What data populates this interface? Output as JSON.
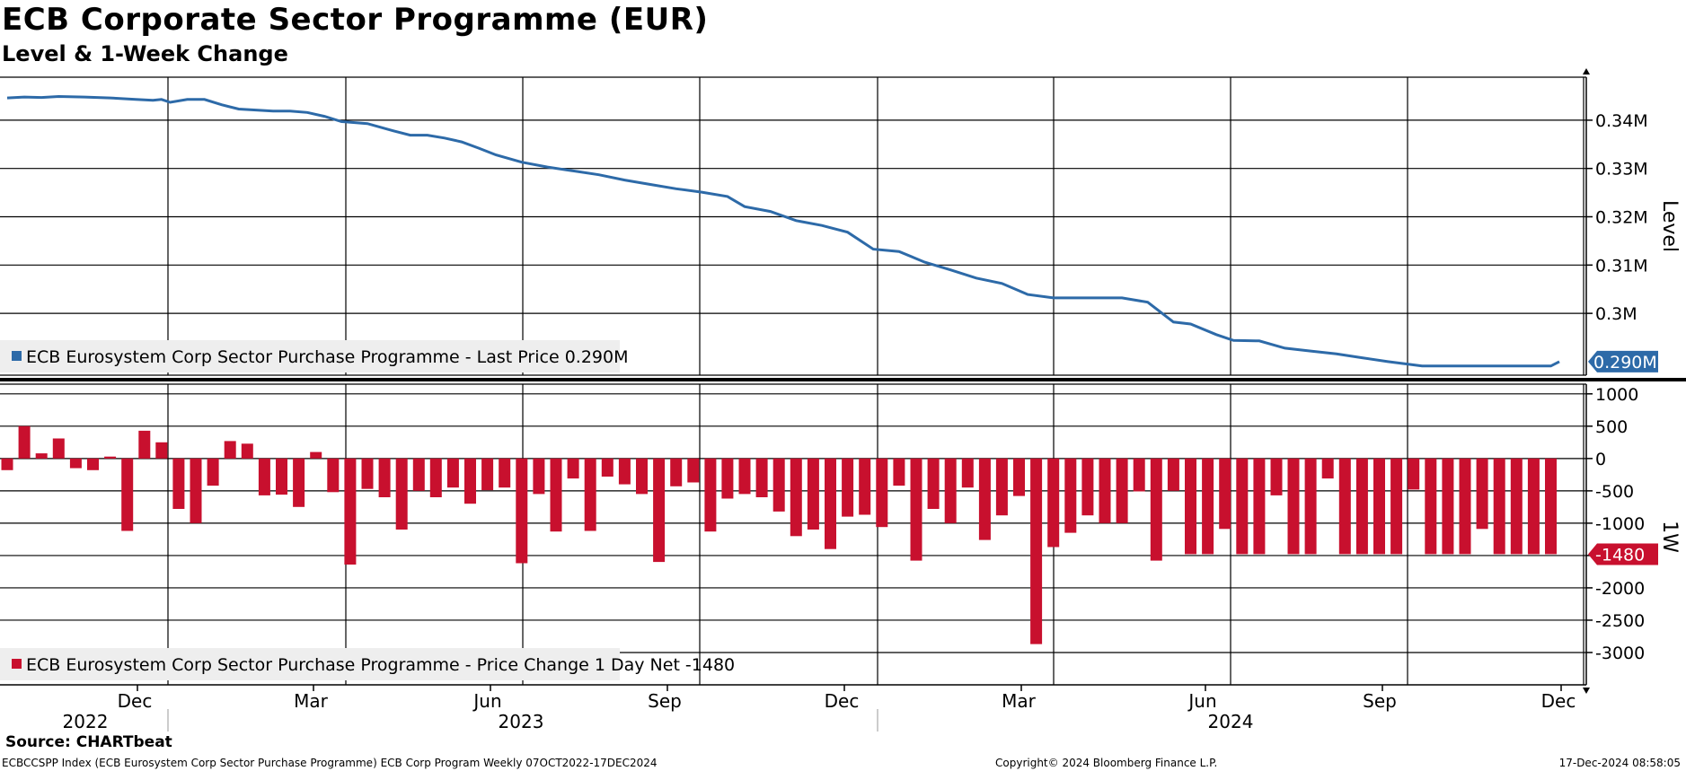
{
  "header": {
    "title": "ECB Corporate Sector Programme (EUR)",
    "subtitle": "Level & 1-Week Change"
  },
  "footer": {
    "source": "Source: CHARTbeat",
    "ticker_line": "ECBCCSPP Index (ECB Eurosystem Corp Sector Purchase Programme) ECB Corp Program  Weekly 07OCT2022-17DEC2024",
    "copyright": "Copyright© 2024 Bloomberg Finance L.P.",
    "timestamp": "17-Dec-2024 08:58:05"
  },
  "colors": {
    "level_line": "#2d6aa8",
    "bars": "#c8102e",
    "grid": "#000000",
    "legend_bg": "#eeeeee"
  },
  "chart_data": [
    {
      "type": "line",
      "title": "Level",
      "ylabel": "Level",
      "ylim": [
        0.2872,
        0.3489
      ],
      "yticks": [
        {
          "value": 0.3,
          "label": "0.3M"
        },
        {
          "value": 0.31,
          "label": "0.31M"
        },
        {
          "value": 0.32,
          "label": "0.32M"
        },
        {
          "value": 0.33,
          "label": "0.33M"
        },
        {
          "value": 0.34,
          "label": "0.34M"
        }
      ],
      "last_value_label": "0.290M",
      "legend": "ECB Eurosystem Corp Sector Purchase Programme - Last Price 0.290M",
      "x_week_index": [
        0,
        2,
        4,
        6,
        9,
        12,
        15,
        17,
        18,
        19,
        21,
        23,
        25,
        27,
        29,
        31,
        33,
        35,
        37,
        39,
        42,
        45,
        47,
        49,
        51,
        53,
        55,
        57,
        60,
        63,
        66,
        69,
        72,
        75,
        78,
        81,
        84,
        86,
        89,
        92,
        95,
        98,
        101,
        104,
        107,
        110,
        113,
        116,
        119,
        122,
        124,
        127,
        130,
        133,
        136,
        138,
        141,
        143,
        146,
        149,
        152,
        155,
        158,
        161,
        165,
        166,
        168,
        170,
        172,
        174,
        176,
        178,
        180,
        181
      ],
      "values": [
        0.3446,
        0.3448,
        0.3447,
        0.3449,
        0.3448,
        0.3446,
        0.3443,
        0.3441,
        0.3443,
        0.3437,
        0.3443,
        0.3443,
        0.3432,
        0.3423,
        0.3421,
        0.3419,
        0.3419,
        0.3416,
        0.3408,
        0.3397,
        0.3393,
        0.3378,
        0.3369,
        0.3369,
        0.3363,
        0.3355,
        0.3342,
        0.3328,
        0.3313,
        0.3303,
        0.3295,
        0.3287,
        0.3276,
        0.3267,
        0.3258,
        0.3251,
        0.3242,
        0.3221,
        0.3211,
        0.3192,
        0.3182,
        0.3168,
        0.3133,
        0.3128,
        0.3106,
        0.309,
        0.3073,
        0.3062,
        0.3039,
        0.3032,
        0.3032,
        0.3032,
        0.3032,
        0.3023,
        0.2982,
        0.2978,
        0.2956,
        0.2944,
        0.2943,
        0.2928,
        0.2922,
        0.2916,
        0.2908,
        0.29,
        0.2891,
        0.2891,
        0.2891,
        0.2891,
        0.2891,
        0.2891,
        0.2891,
        0.2891,
        0.2891,
        0.29
      ]
    },
    {
      "type": "bar",
      "title": "1W",
      "ylabel": "1W",
      "ylim": [
        -3500,
        1150
      ],
      "yticks": [
        {
          "value": 1000,
          "label": "1000"
        },
        {
          "value": 500,
          "label": "500"
        },
        {
          "value": 0,
          "label": "0"
        },
        {
          "value": -500,
          "label": "-500"
        },
        {
          "value": -1000,
          "label": "-1000"
        },
        {
          "value": -1500,
          "label": "-1500"
        },
        {
          "value": -2000,
          "label": "-2000"
        },
        {
          "value": -2500,
          "label": "-2500"
        },
        {
          "value": -3000,
          "label": "-3000"
        }
      ],
      "last_value_label": "-1480",
      "legend": "ECB Eurosystem Corp Sector Purchase Programme - Price Change 1 Day Net -1480",
      "x_week_index": [
        0,
        2,
        4,
        6,
        8,
        10,
        12,
        14,
        16,
        18,
        20,
        22,
        24,
        26,
        28,
        30,
        32,
        34,
        36,
        38,
        40,
        42,
        44,
        46,
        48,
        50,
        52,
        54,
        56,
        58,
        60,
        62,
        64,
        66,
        68,
        70,
        72,
        74,
        76,
        78,
        80,
        82,
        84,
        86,
        88,
        90,
        92,
        94,
        96,
        98,
        100,
        102,
        104,
        106,
        108,
        110,
        112,
        114,
        116,
        118,
        120,
        122,
        124,
        126,
        128,
        130,
        132,
        134,
        136,
        138,
        140,
        142,
        144,
        146,
        148,
        150,
        152,
        154,
        156,
        158,
        160,
        162,
        164,
        166,
        168,
        170,
        172,
        174,
        176,
        178,
        180
      ],
      "values": [
        -180,
        500,
        80,
        310,
        -150,
        -180,
        30,
        -1120,
        430,
        250,
        -780,
        -1000,
        -420,
        270,
        230,
        -570,
        -560,
        -750,
        100,
        -520,
        -1640,
        -470,
        -600,
        -1100,
        -500,
        -600,
        -450,
        -700,
        -490,
        -450,
        -1620,
        -550,
        -1130,
        -310,
        -1120,
        -280,
        -400,
        -550,
        -1600,
        -430,
        -370,
        -1130,
        -620,
        -550,
        -600,
        -820,
        -1200,
        -1100,
        -1400,
        -900,
        -870,
        -1060,
        -420,
        -1580,
        -780,
        -1000,
        -450,
        -1260,
        -880,
        -580,
        -2870,
        -1370,
        -1150,
        -880,
        -1000,
        -1000,
        -510,
        -1580,
        -500,
        -1480,
        -1480,
        -1090,
        -1480,
        -1480,
        -570,
        -1480,
        -1480,
        -310,
        -1480,
        -1480,
        -1480,
        -1480,
        -480,
        -1480,
        -1480,
        -1480,
        -1090,
        -1480,
        -1480,
        -1480,
        -1480
      ]
    }
  ],
  "x_axis": {
    "month_labels": [
      "Dec",
      "Mar",
      "Jun",
      "Sep",
      "Dec",
      "Mar",
      "Jun",
      "Sep",
      "Dec"
    ],
    "year_labels": [
      "2022",
      "2023",
      "2024"
    ]
  }
}
